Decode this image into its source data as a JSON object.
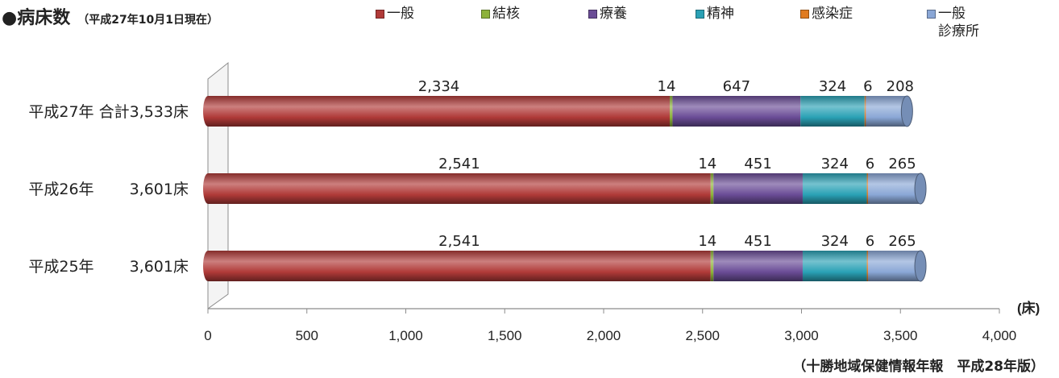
{
  "header": {
    "title": "●病床数",
    "subtitle": "（平成27年10月1日現在）"
  },
  "legend": [
    {
      "label": "一般",
      "color": "#b03a38"
    },
    {
      "label": "結核",
      "color": "#8db23a"
    },
    {
      "label": "療養",
      "color": "#6a4c96"
    },
    {
      "label": "精神",
      "color": "#2aa1b5"
    },
    {
      "label": "感染症",
      "color": "#e07b20"
    },
    {
      "label": "一般\n診療所",
      "color": "#8aa7d6"
    }
  ],
  "chart_data": {
    "type": "bar",
    "orientation": "horizontal",
    "stacked": true,
    "categories": [
      "平成27年 合計3,533床",
      "平成26年　　 3,601床",
      "平成25年　　 3,601床"
    ],
    "series": [
      {
        "name": "一般",
        "values": [
          2334,
          2541,
          2541
        ]
      },
      {
        "name": "結核",
        "values": [
          14,
          14,
          14
        ]
      },
      {
        "name": "療養",
        "values": [
          647,
          451,
          451
        ]
      },
      {
        "name": "精神",
        "values": [
          324,
          324,
          324
        ]
      },
      {
        "name": "感染症",
        "values": [
          6,
          6,
          6
        ]
      },
      {
        "name": "一般診療所",
        "values": [
          208,
          265,
          265
        ]
      }
    ],
    "data_labels": [
      [
        "2,334",
        "14",
        "647",
        "324",
        "6",
        "208"
      ],
      [
        "2,541",
        "14",
        "451",
        "324",
        "6",
        "265"
      ],
      [
        "2,541",
        "14",
        "451",
        "324",
        "6",
        "265"
      ]
    ],
    "xlim": [
      0,
      4000
    ],
    "xticks": [
      0,
      500,
      1000,
      1500,
      2000,
      2500,
      3000,
      3500,
      4000
    ],
    "xtick_labels": [
      "0",
      "500",
      "1,000",
      "1,500",
      "2,000",
      "2,500",
      "3,000",
      "3,500",
      "4,000"
    ],
    "xlabel": "(床)",
    "grid": false,
    "legend_position": "top"
  },
  "footer": {
    "source": "（十勝地域保健情報年報　平成28年版）"
  }
}
